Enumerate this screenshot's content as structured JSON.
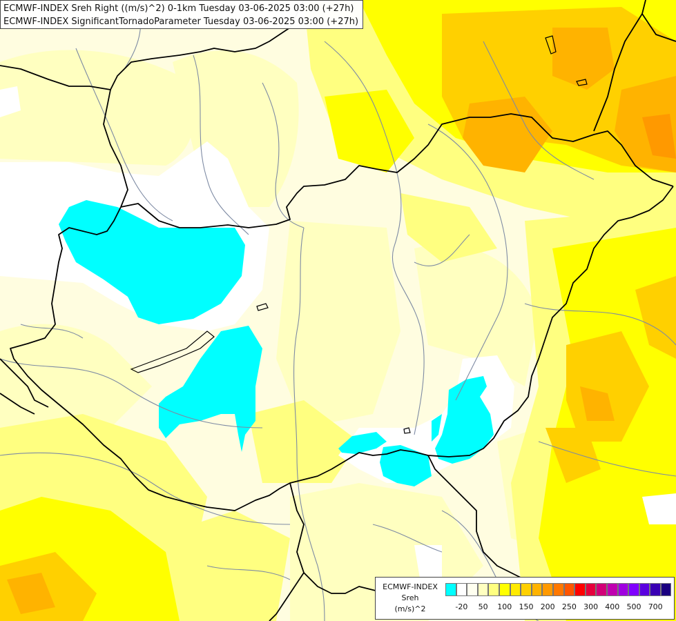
{
  "title_lines": [
    "ECMWF-INDEX Sreh Right ((m/s)^2) 0-1km Tuesday 03-06-2025 03:00 (+27h)",
    "ECMWF-INDEX SignificantTornadoParameter Tuesday 03-06-2025 03:00 (+27h)"
  ],
  "legend": {
    "source": "ECMWF-INDEX",
    "parameter": "Sreh",
    "unit": "(m/s)^2",
    "colors": [
      "#00ffff",
      "#ffffff",
      "#fffff0",
      "#ffffc0",
      "#ffff80",
      "#ffff00",
      "#ffea00",
      "#ffd000",
      "#ffb300",
      "#ff9900",
      "#ff7800",
      "#ff5500",
      "#ff0000",
      "#e6003c",
      "#d20078",
      "#c000b0",
      "#a000e0",
      "#8000ff",
      "#5a00e0",
      "#3a00b4",
      "#1a0080"
    ],
    "ticks": [
      {
        "label": "-20",
        "index": 1
      },
      {
        "label": "50",
        "index": 3
      },
      {
        "label": "100",
        "index": 5
      },
      {
        "label": "150",
        "index": 7
      },
      {
        "label": "200",
        "index": 9
      },
      {
        "label": "250",
        "index": 11
      },
      {
        "label": "300",
        "index": 13
      },
      {
        "label": "400",
        "index": 15
      },
      {
        "label": "500",
        "index": 17
      },
      {
        "label": "700",
        "index": 19
      }
    ]
  },
  "map_colors": {
    "white": "#ffffff",
    "pale": "#fffde0",
    "light": "#ffffc0",
    "mid": "#ffff80",
    "yellow": "#ffff00",
    "gold": "#ffd000",
    "orange": "#ffb300",
    "deep_orange": "#ff9900",
    "cyan": "#00ffff",
    "border": "#000000",
    "river": "#7d8aa3"
  }
}
